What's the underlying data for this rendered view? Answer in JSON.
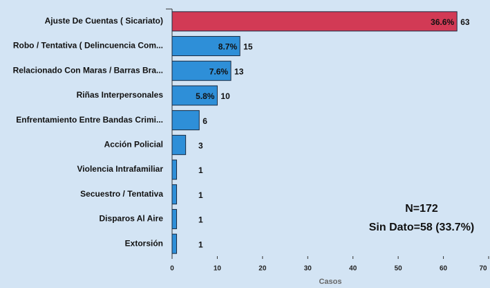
{
  "chart_data": {
    "type": "bar",
    "orientation": "horizontal",
    "categories": [
      "Ajuste De Cuentas ( Sicariato)",
      "Robo / Tentativa ( Delincuencia Com...",
      "Relacionado Con Maras / Barras Bra...",
      "Riñas Interpersonales",
      "Enfrentamiento Entre Bandas Crimi...",
      "Acción Policial",
      "Violencia Intrafamiliar",
      "Secuestro / Tentativa",
      "Disparos Al Aire",
      "Extorsión"
    ],
    "values": [
      63,
      15,
      13,
      10,
      6,
      3,
      1,
      1,
      1,
      1
    ],
    "percent_labels": [
      "36.6%",
      "8.7%",
      "7.6%",
      "5.8%",
      null,
      null,
      null,
      null,
      null,
      null
    ],
    "colors": [
      "#d23a55",
      "#2e8fd8",
      "#2e8fd8",
      "#2e8fd8",
      "#2e8fd8",
      "#2e8fd8",
      "#2e8fd8",
      "#2e8fd8",
      "#2e8fd8",
      "#2e8fd8"
    ],
    "xlabel": "Casos",
    "xlim": [
      0,
      70
    ],
    "xticks": [
      0,
      10,
      20,
      30,
      40,
      50,
      60,
      70
    ],
    "annotations": [
      "N=172",
      "Sin Dato=58 (33.7%)"
    ]
  }
}
